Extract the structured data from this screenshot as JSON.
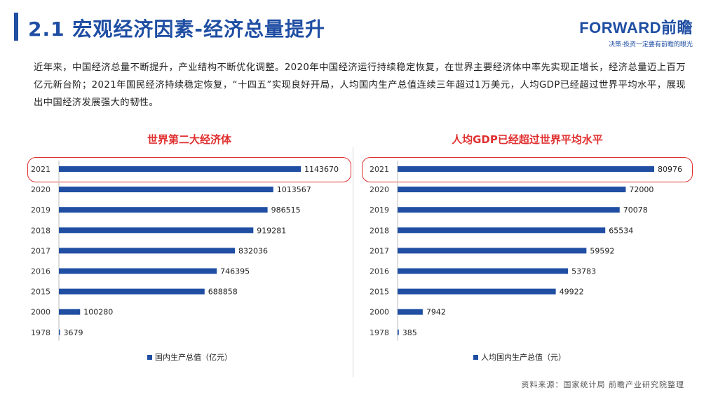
{
  "header": {
    "title": "2.1 宏观经济因素-经济总量提升",
    "logo_main": "FORWARD前瞻",
    "logo_sub": "决策·投资一定要有前瞻的眼光"
  },
  "intro": "近年来，中国经济总量不断提升，产业结构不断优化调整。2020年中国经济运行持续稳定恢复，在世界主要经济体中率先实现正增长，经济总量迈上百万亿元新台阶；2021年国民经济持续稳定恢复，“十四五”实现良好开局，人均国内生产总值连续三年超过1万美元，人均GDP已经超过世界平均水平，展现出中国经济发展强大的韧性。",
  "source": "资料来源：国家统计局 前瞻产业研究院整理",
  "colors": {
    "bar": "#1f4ea3",
    "accent": "#e03030"
  },
  "chart_data": [
    {
      "type": "bar",
      "orientation": "horizontal",
      "title": "世界第二大经济体",
      "categories": [
        "2021",
        "2020",
        "2019",
        "2018",
        "2017",
        "2016",
        "2015",
        "2000",
        "1978"
      ],
      "series": [
        {
          "name": "国内生产总值（亿元）",
          "values": [
            1143670,
            1013567,
            986515,
            919281,
            832036,
            746395,
            688858,
            100280,
            3679
          ]
        }
      ],
      "labels": [
        "1143670",
        "1013567",
        "986515",
        "919281",
        "832036",
        "746395",
        "688858",
        "100280",
        "3679"
      ],
      "highlight": "2021",
      "legend": "bottom"
    },
    {
      "type": "bar",
      "orientation": "horizontal",
      "title": "人均GDP已经超过世界平均水平",
      "categories": [
        "2021",
        "2020",
        "2019",
        "2018",
        "2017",
        "2016",
        "2015",
        "2000",
        "1978"
      ],
      "series": [
        {
          "name": "人均国内生产总值（元）",
          "values": [
            80976,
            72000,
            70078,
            65534,
            59592,
            53783,
            49922,
            7942,
            385
          ]
        }
      ],
      "labels": [
        "80976",
        "72000",
        "70078",
        "65534",
        "59592",
        "53783",
        "49922",
        "7942",
        "385"
      ],
      "highlight": "2021",
      "legend": "bottom"
    }
  ]
}
